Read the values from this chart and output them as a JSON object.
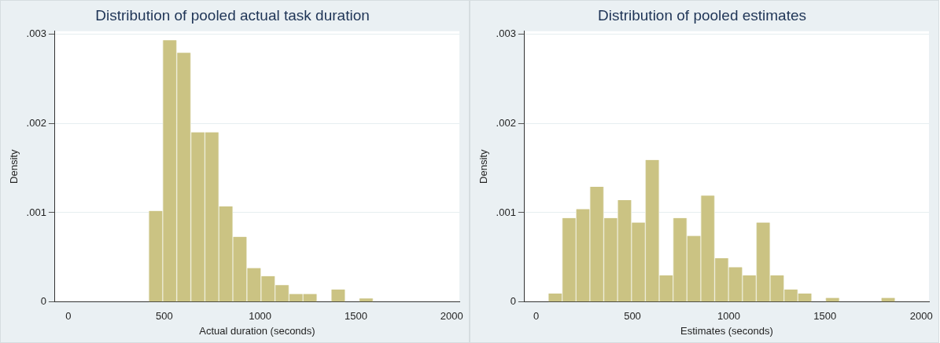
{
  "chart_data": [
    {
      "type": "histogram",
      "title": "Distribution of pooled actual task duration",
      "xlabel": "Actual duration (seconds)",
      "ylabel": "Density",
      "color": "#cbc383",
      "bins": [
        419,
        492,
        565,
        639,
        712,
        785,
        858,
        931,
        1005,
        1078,
        1151,
        1224,
        1297,
        1371,
        1444,
        1517,
        1590
      ],
      "values": [
        0.00102,
        0.00293,
        0.00279,
        0.0019,
        0.0019,
        0.00107,
        0.00073,
        0.00038,
        0.00029,
        0.00019,
        9e-05,
        9e-05,
        0,
        0.00014,
        0,
        4e-05
      ],
      "xlim": [
        -70,
        2040
      ],
      "xticks": [
        0,
        500,
        1000,
        1500,
        2000
      ],
      "ylim": [
        0,
        0.00303
      ],
      "yticks": [
        {
          "value": 0,
          "label": "0"
        },
        {
          "value": 0.001,
          "label": ".001"
        },
        {
          "value": 0.002,
          "label": ".002"
        },
        {
          "value": 0.003,
          "label": ".003"
        }
      ],
      "grid": "y"
    },
    {
      "type": "histogram",
      "title": "Distribution of pooled estimates",
      "xlabel": "Estimates (seconds)",
      "ylabel": "Density",
      "color": "#cbc383",
      "bins": [
        63,
        135,
        207,
        279,
        351,
        423,
        495,
        567,
        639,
        711,
        783,
        855,
        927,
        999,
        1071,
        1143,
        1215,
        1287,
        1359,
        1431,
        1503,
        1575,
        1648,
        1720,
        1792,
        1864
      ],
      "values": [
        9.5e-05,
        0.00094,
        0.00104,
        0.00129,
        0.00094,
        0.00114,
        0.00089,
        0.00159,
        0.0003,
        0.00094,
        0.00074,
        0.00119,
        0.00049,
        0.00039,
        0.0003,
        0.00089,
        0.0003,
        0.00014,
        9.5e-05,
        0,
        4.6e-05,
        0,
        0,
        0,
        4.6e-05
      ],
      "xlim": [
        -60,
        2040
      ],
      "xticks": [
        0,
        500,
        1000,
        1500,
        2000
      ],
      "ylim": [
        0,
        0.00303
      ],
      "yticks": [
        {
          "value": 0,
          "label": "0"
        },
        {
          "value": 0.001,
          "label": ".001"
        },
        {
          "value": 0.002,
          "label": ".002"
        },
        {
          "value": 0.003,
          "label": ".003"
        }
      ],
      "grid": "y"
    }
  ]
}
